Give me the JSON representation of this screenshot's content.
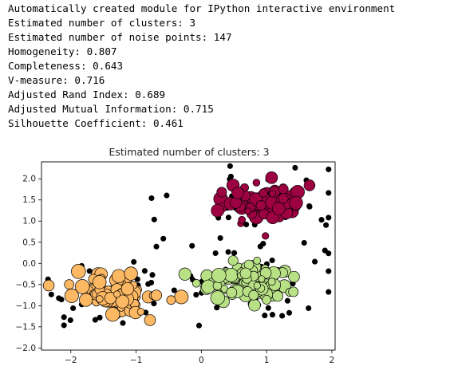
{
  "console": {
    "lines": [
      "Automatically created module for IPython interactive environment",
      "Estimated number of clusters: 3",
      "Estimated number of noise points: 147",
      "Homogeneity: 0.807",
      "Completeness: 0.643",
      "V-measure: 0.716",
      "Adjusted Rand Index: 0.689",
      "Adjusted Mutual Information: 0.715",
      "Silhouette Coefficient: 0.461"
    ]
  },
  "chart_data": {
    "type": "scatter",
    "title": "Estimated number of clusters: 3",
    "xlabel": "",
    "ylabel": "",
    "xlim": [
      -2.45,
      2.05
    ],
    "ylim": [
      -2.05,
      2.4
    ],
    "xticks": [
      -2,
      -1,
      0,
      1,
      2
    ],
    "yticks": [
      -2.0,
      -1.5,
      -1.0,
      -0.5,
      0.0,
      0.5,
      1.0,
      1.5,
      2.0
    ],
    "xtick_labels": [
      "−2",
      "−1",
      "0",
      "1",
      "2"
    ],
    "ytick_labels": [
      "−2.0",
      "−1.5",
      "−1.0",
      "−0.5",
      "0.0",
      "0.5",
      "1.0",
      "1.5",
      "2.0"
    ],
    "grid": false,
    "clusters": [
      {
        "center": [
          1.0,
          1.45
        ],
        "color": "#9e0142",
        "core_points": 95,
        "spread": [
          0.38,
          0.25
        ]
      },
      {
        "center": [
          -1.3,
          -0.75
        ],
        "color": "#fdb863",
        "core_points": 105,
        "spread": [
          0.42,
          0.33
        ]
      },
      {
        "center": [
          0.75,
          -0.45
        ],
        "color": "#b8e186",
        "core_points": 100,
        "spread": [
          0.42,
          0.3
        ]
      }
    ],
    "noise": {
      "count": 147,
      "color": "#000000"
    }
  }
}
